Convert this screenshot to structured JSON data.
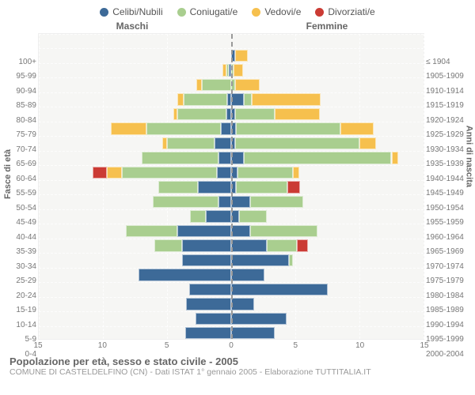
{
  "chart": {
    "type": "population-pyramid",
    "legend": [
      {
        "label": "Celibi/Nubili",
        "color": "#3d6a98"
      },
      {
        "label": "Coniugati/e",
        "color": "#a9ce8f"
      },
      {
        "label": "Vedovi/e",
        "color": "#f6c04e"
      },
      {
        "label": "Divorziati/e",
        "color": "#cb3b34"
      }
    ],
    "header_left": "Maschi",
    "header_right": "Femmine",
    "y_title_left": "Fasce di età",
    "y_title_right": "Anni di nascita",
    "xmax": 15,
    "x_ticks": [
      15,
      10,
      5,
      0,
      5,
      10,
      15
    ],
    "background_color": "#f6f6f4",
    "grid_color": "#ffffff",
    "rows": [
      {
        "age": "100+",
        "birth": "≤ 1904",
        "m": [
          0,
          0,
          0,
          0
        ],
        "f": [
          0,
          0,
          0,
          0
        ]
      },
      {
        "age": "95-99",
        "birth": "1905-1909",
        "m": [
          0,
          0,
          0,
          0
        ],
        "f": [
          0.3,
          0,
          1.0,
          0
        ]
      },
      {
        "age": "90-94",
        "birth": "1910-1914",
        "m": [
          0.2,
          0.2,
          0.3,
          0
        ],
        "f": [
          0,
          0.2,
          0.7,
          0
        ]
      },
      {
        "age": "85-89",
        "birth": "1915-1919",
        "m": [
          0,
          2.3,
          0.4,
          0
        ],
        "f": [
          0,
          0.3,
          1.9,
          0
        ]
      },
      {
        "age": "80-84",
        "birth": "1920-1924",
        "m": [
          0.3,
          3.4,
          0.5,
          0
        ],
        "f": [
          1.0,
          0.6,
          5.4,
          0
        ]
      },
      {
        "age": "75-79",
        "birth": "1925-1929",
        "m": [
          0.4,
          3.8,
          0.3,
          0
        ],
        "f": [
          0.3,
          3.1,
          3.5,
          0
        ]
      },
      {
        "age": "70-74",
        "birth": "1930-1934",
        "m": [
          0.8,
          5.8,
          2.8,
          0
        ],
        "f": [
          0.4,
          8.1,
          2.6,
          0
        ]
      },
      {
        "age": "65-69",
        "birth": "1935-1939",
        "m": [
          1.3,
          3.7,
          0.4,
          0
        ],
        "f": [
          0.3,
          9.7,
          1.3,
          0
        ]
      },
      {
        "age": "60-64",
        "birth": "1940-1944",
        "m": [
          1.0,
          6.0,
          0,
          0
        ],
        "f": [
          1.0,
          11.5,
          0.5,
          0
        ]
      },
      {
        "age": "55-59",
        "birth": "1945-1949",
        "m": [
          1.1,
          7.4,
          1.2,
          1.1
        ],
        "f": [
          0.5,
          4.3,
          0.5,
          0
        ]
      },
      {
        "age": "50-54",
        "birth": "1950-1954",
        "m": [
          2.6,
          3.1,
          0,
          0
        ],
        "f": [
          0.4,
          4.0,
          0,
          1.0
        ]
      },
      {
        "age": "45-49",
        "birth": "1955-1959",
        "m": [
          1.0,
          5.1,
          0,
          0
        ],
        "f": [
          1.5,
          4.1,
          0,
          0
        ]
      },
      {
        "age": "40-44",
        "birth": "1960-1964",
        "m": [
          2.0,
          1.2,
          0,
          0
        ],
        "f": [
          0.6,
          2.2,
          0,
          0
        ]
      },
      {
        "age": "35-39",
        "birth": "1965-1969",
        "m": [
          4.2,
          4.0,
          0,
          0
        ],
        "f": [
          1.5,
          5.2,
          0,
          0
        ]
      },
      {
        "age": "30-34",
        "birth": "1970-1974",
        "m": [
          3.8,
          2.2,
          0,
          0
        ],
        "f": [
          2.8,
          2.3,
          0,
          0.9
        ]
      },
      {
        "age": "25-29",
        "birth": "1975-1979",
        "m": [
          3.8,
          0,
          0,
          0
        ],
        "f": [
          4.5,
          0.3,
          0,
          0
        ]
      },
      {
        "age": "20-24",
        "birth": "1980-1984",
        "m": [
          7.2,
          0,
          0,
          0
        ],
        "f": [
          2.6,
          0,
          0,
          0
        ]
      },
      {
        "age": "15-19",
        "birth": "1985-1989",
        "m": [
          3.3,
          0,
          0,
          0
        ],
        "f": [
          7.5,
          0,
          0,
          0
        ]
      },
      {
        "age": "10-14",
        "birth": "1990-1994",
        "m": [
          3.5,
          0,
          0,
          0
        ],
        "f": [
          1.8,
          0,
          0,
          0
        ]
      },
      {
        "age": "5-9",
        "birth": "1995-1999",
        "m": [
          2.8,
          0,
          0,
          0
        ],
        "f": [
          4.3,
          0,
          0,
          0
        ]
      },
      {
        "age": "0-4",
        "birth": "2000-2004",
        "m": [
          3.6,
          0,
          0,
          0
        ],
        "f": [
          3.4,
          0,
          0,
          0
        ]
      }
    ],
    "title": "Popolazione per età, sesso e stato civile - 2005",
    "subtitle": "COMUNE DI CASTELDELFINO (CN) - Dati ISTAT 1° gennaio 2005 - Elaborazione TUTTITALIA.IT"
  }
}
